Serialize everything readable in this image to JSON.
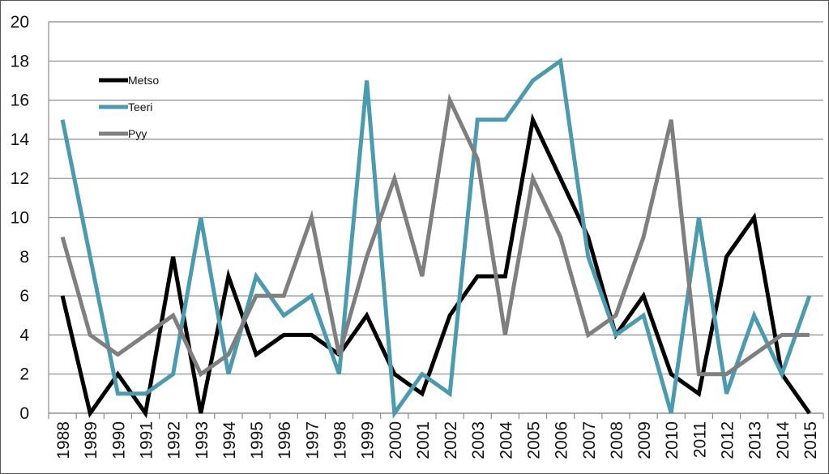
{
  "chart_data": {
    "type": "line",
    "title": "",
    "xlabel": "",
    "ylabel": "",
    "ylim": [
      0,
      20
    ],
    "yticks": [
      0,
      2,
      4,
      6,
      8,
      10,
      12,
      14,
      16,
      18,
      20
    ],
    "grid": true,
    "legend_position": "top-left",
    "categories": [
      "1988",
      "1989",
      "1990",
      "1991",
      "1992",
      "1993",
      "1994",
      "1995",
      "1996",
      "1997",
      "1998",
      "1999",
      "2000",
      "2001",
      "2002",
      "2003",
      "2004",
      "2005",
      "2006",
      "2007",
      "2008",
      "2009",
      "2010",
      "2011",
      "2012",
      "2013",
      "2014",
      "2015"
    ],
    "series": [
      {
        "name": "Metso",
        "color": "#000000",
        "values": [
          6,
          0,
          2,
          0,
          8,
          0,
          7,
          3,
          4,
          4,
          3,
          5,
          2,
          1,
          5,
          7,
          7,
          15,
          12,
          9,
          4,
          6,
          2,
          1,
          8,
          10,
          2,
          0
        ]
      },
      {
        "name": "Teeri",
        "color": "#4a9bb0",
        "values": [
          15,
          8,
          1,
          1,
          2,
          10,
          2,
          7,
          5,
          6,
          2,
          17,
          0,
          2,
          1,
          15,
          15,
          17,
          18,
          8,
          4,
          5,
          0,
          10,
          1,
          5,
          2,
          6
        ]
      },
      {
        "name": "Pyy",
        "color": "#7f7f7f",
        "values": [
          9,
          4,
          3,
          4,
          5,
          2,
          3,
          6,
          6,
          10,
          3,
          8,
          12,
          7,
          16,
          13,
          4,
          12,
          9,
          4,
          5,
          9,
          15,
          2,
          2,
          3,
          4,
          4
        ]
      }
    ]
  }
}
